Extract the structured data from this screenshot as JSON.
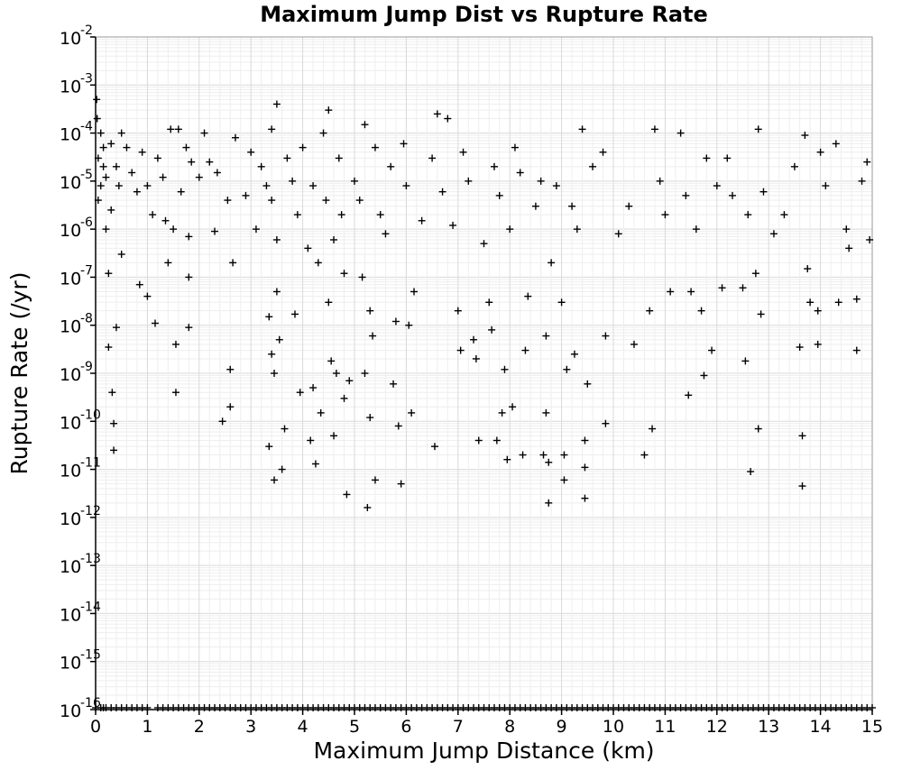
{
  "chart_data": {
    "type": "scatter",
    "title": "Maximum Jump Dist vs Rupture Rate",
    "xlabel": "Maximum Jump Distance (km)",
    "ylabel": "Rupture Rate (/yr)",
    "xlim": [
      0,
      15
    ],
    "ylim": [
      1e-16,
      0.01
    ],
    "y_scale": "log",
    "grid": true,
    "marker": "plus",
    "marker_color": "#000000",
    "x_ticks": [
      "0",
      "1",
      "2",
      "3",
      "4",
      "5",
      "6",
      "7",
      "8",
      "9",
      "10",
      "11",
      "12",
      "13",
      "14",
      "15"
    ],
    "y_ticks": [
      {
        "base": "10",
        "exp": "-2"
      },
      {
        "base": "10",
        "exp": "-3"
      },
      {
        "base": "10",
        "exp": "-4"
      },
      {
        "base": "10",
        "exp": "-5"
      },
      {
        "base": "10",
        "exp": "-6"
      },
      {
        "base": "10",
        "exp": "-7"
      },
      {
        "base": "10",
        "exp": "-8"
      },
      {
        "base": "10",
        "exp": "-9"
      },
      {
        "base": "10",
        "exp": "-10"
      },
      {
        "base": "10",
        "exp": "-11"
      },
      {
        "base": "10",
        "exp": "-12"
      },
      {
        "base": "10",
        "exp": "-13"
      },
      {
        "base": "10",
        "exp": "-14"
      },
      {
        "base": "10",
        "exp": "-15"
      },
      {
        "base": "10",
        "exp": "-16"
      }
    ],
    "points": [
      [
        0.02,
        0.0005
      ],
      [
        0.03,
        0.0002
      ],
      [
        0.05,
        3e-05
      ],
      [
        0.05,
        4e-06
      ],
      [
        0.1,
        0.0001
      ],
      [
        0.1,
        8e-06
      ],
      [
        0.15,
        5e-05
      ],
      [
        0.15,
        2e-05
      ],
      [
        0.2,
        1.2e-05
      ],
      [
        0.2,
        1e-06
      ],
      [
        0.25,
        1.2e-07
      ],
      [
        0.25,
        3.5e-09
      ],
      [
        0.3,
        6e-05
      ],
      [
        0.3,
        2.5e-06
      ],
      [
        0.32,
        4e-10
      ],
      [
        0.35,
        9e-11
      ],
      [
        0.35,
        2.5e-11
      ],
      [
        0.4,
        9e-09
      ],
      [
        0.4,
        2e-05
      ],
      [
        0.45,
        8e-06
      ],
      [
        0.5,
        0.0001
      ],
      [
        0.5,
        3e-07
      ],
      [
        0.6,
        5e-05
      ],
      [
        0.7,
        1.5e-05
      ],
      [
        0.8,
        6e-06
      ],
      [
        0.85,
        7e-08
      ],
      [
        0.9,
        4e-05
      ],
      [
        1.0,
        4e-08
      ],
      [
        1.0,
        8e-06
      ],
      [
        1.1,
        2e-06
      ],
      [
        1.15,
        1.1e-08
      ],
      [
        1.2,
        3e-05
      ],
      [
        1.3,
        1.2e-05
      ],
      [
        1.35,
        1.5e-06
      ],
      [
        1.4,
        2e-07
      ],
      [
        1.45,
        0.00012
      ],
      [
        1.5,
        1e-06
      ],
      [
        1.55,
        4e-09
      ],
      [
        1.55,
        4e-10
      ],
      [
        1.6,
        0.00012
      ],
      [
        1.65,
        6e-06
      ],
      [
        1.75,
        5e-05
      ],
      [
        1.8,
        7e-07
      ],
      [
        1.8,
        1e-07
      ],
      [
        1.8,
        9e-09
      ],
      [
        1.85,
        2.5e-05
      ],
      [
        2.0,
        1.2e-05
      ],
      [
        2.1,
        0.0001
      ],
      [
        2.2,
        2.5e-05
      ],
      [
        2.3,
        9e-07
      ],
      [
        2.35,
        1.5e-05
      ],
      [
        2.45,
        1e-10
      ],
      [
        2.55,
        4e-06
      ],
      [
        2.6,
        1.2e-09
      ],
      [
        2.6,
        2e-10
      ],
      [
        2.65,
        2e-07
      ],
      [
        2.7,
        8e-05
      ],
      [
        2.9,
        5e-06
      ],
      [
        3.0,
        4e-05
      ],
      [
        3.1,
        1e-06
      ],
      [
        3.2,
        2e-05
      ],
      [
        3.3,
        8e-06
      ],
      [
        3.35,
        1.5e-08
      ],
      [
        3.35,
        3e-11
      ],
      [
        3.4,
        0.00012
      ],
      [
        3.4,
        4e-06
      ],
      [
        3.4,
        2.5e-09
      ],
      [
        3.45,
        1e-09
      ],
      [
        3.45,
        6e-12
      ],
      [
        3.5,
        0.0004
      ],
      [
        3.5,
        6e-07
      ],
      [
        3.5,
        5e-08
      ],
      [
        3.55,
        5e-09
      ],
      [
        3.6,
        1e-11
      ],
      [
        3.65,
        7e-11
      ],
      [
        3.7,
        3e-05
      ],
      [
        3.8,
        1e-05
      ],
      [
        3.85,
        1.7e-08
      ],
      [
        3.9,
        2e-06
      ],
      [
        3.95,
        4e-10
      ],
      [
        4.0,
        5e-05
      ],
      [
        4.1,
        4e-07
      ],
      [
        4.15,
        4e-11
      ],
      [
        4.2,
        8e-06
      ],
      [
        4.2,
        5e-10
      ],
      [
        4.25,
        1.3e-11
      ],
      [
        4.3,
        2e-07
      ],
      [
        4.35,
        1.5e-10
      ],
      [
        4.4,
        0.0001
      ],
      [
        4.45,
        4e-06
      ],
      [
        4.5,
        0.0003
      ],
      [
        4.5,
        3e-08
      ],
      [
        4.55,
        1.8e-09
      ],
      [
        4.6,
        5e-11
      ],
      [
        4.6,
        6e-07
      ],
      [
        4.65,
        1e-09
      ],
      [
        4.7,
        3e-05
      ],
      [
        4.75,
        2e-06
      ],
      [
        4.8,
        1.2e-07
      ],
      [
        4.8,
        3e-10
      ],
      [
        4.85,
        3e-12
      ],
      [
        4.9,
        7e-10
      ],
      [
        5.0,
        1e-05
      ],
      [
        5.1,
        4e-06
      ],
      [
        5.15,
        1e-07
      ],
      [
        5.2,
        0.00015
      ],
      [
        5.2,
        1e-09
      ],
      [
        5.25,
        1.6e-12
      ],
      [
        5.3,
        2e-08
      ],
      [
        5.3,
        1.2e-10
      ],
      [
        5.35,
        6e-09
      ],
      [
        5.4,
        6e-12
      ],
      [
        5.4,
        5e-05
      ],
      [
        5.5,
        2e-06
      ],
      [
        5.6,
        8e-07
      ],
      [
        5.7,
        2e-05
      ],
      [
        5.75,
        6e-10
      ],
      [
        5.8,
        1.2e-08
      ],
      [
        5.85,
        8e-11
      ],
      [
        5.9,
        5e-12
      ],
      [
        5.95,
        6e-05
      ],
      [
        6.0,
        8e-06
      ],
      [
        6.05,
        1e-08
      ],
      [
        6.1,
        1.5e-10
      ],
      [
        6.15,
        5e-08
      ],
      [
        6.3,
        1.5e-06
      ],
      [
        6.5,
        3e-05
      ],
      [
        6.55,
        3e-11
      ],
      [
        6.6,
        0.00025
      ],
      [
        6.7,
        6e-06
      ],
      [
        6.8,
        0.0002
      ],
      [
        6.9,
        1.2e-06
      ],
      [
        7.0,
        2e-08
      ],
      [
        7.05,
        3e-09
      ],
      [
        7.1,
        4e-05
      ],
      [
        7.2,
        1e-05
      ],
      [
        7.3,
        5e-09
      ],
      [
        7.35,
        2e-09
      ],
      [
        7.4,
        4e-11
      ],
      [
        7.5,
        5e-07
      ],
      [
        7.6,
        3e-08
      ],
      [
        7.65,
        8e-09
      ],
      [
        7.7,
        2e-05
      ],
      [
        7.75,
        4e-11
      ],
      [
        7.8,
        5e-06
      ],
      [
        7.85,
        1.5e-10
      ],
      [
        7.9,
        1.2e-09
      ],
      [
        7.95,
        1.6e-11
      ],
      [
        8.0,
        1e-06
      ],
      [
        8.05,
        2e-10
      ],
      [
        8.1,
        5e-05
      ],
      [
        8.2,
        1.5e-05
      ],
      [
        8.25,
        2e-11
      ],
      [
        8.3,
        3e-09
      ],
      [
        8.35,
        4e-08
      ],
      [
        8.5,
        3e-06
      ],
      [
        8.6,
        1e-05
      ],
      [
        8.65,
        2e-11
      ],
      [
        8.7,
        6e-09
      ],
      [
        8.7,
        1.5e-10
      ],
      [
        8.75,
        2e-12
      ],
      [
        8.75,
        1.4e-11
      ],
      [
        8.8,
        2e-07
      ],
      [
        8.9,
        8e-06
      ],
      [
        9.0,
        3e-08
      ],
      [
        9.05,
        2e-11
      ],
      [
        9.05,
        6e-12
      ],
      [
        9.1,
        1.2e-09
      ],
      [
        9.2,
        3e-06
      ],
      [
        9.25,
        2.5e-09
      ],
      [
        9.3,
        1e-06
      ],
      [
        9.4,
        0.00012
      ],
      [
        9.45,
        4e-11
      ],
      [
        9.45,
        2.5e-12
      ],
      [
        9.45,
        1.1e-11
      ],
      [
        9.5,
        6e-10
      ],
      [
        9.6,
        2e-05
      ],
      [
        9.8,
        4e-05
      ],
      [
        9.85,
        6e-09
      ],
      [
        9.85,
        9e-11
      ],
      [
        10.1,
        8e-07
      ],
      [
        10.3,
        3e-06
      ],
      [
        10.4,
        4e-09
      ],
      [
        10.6,
        2e-11
      ],
      [
        10.7,
        2e-08
      ],
      [
        10.75,
        7e-11
      ],
      [
        10.8,
        0.00012
      ],
      [
        10.9,
        1e-05
      ],
      [
        11.0,
        2e-06
      ],
      [
        11.1,
        5e-08
      ],
      [
        11.3,
        0.0001
      ],
      [
        11.4,
        5e-06
      ],
      [
        11.45,
        3.5e-10
      ],
      [
        11.5,
        5e-08
      ],
      [
        11.6,
        1e-06
      ],
      [
        11.7,
        2e-08
      ],
      [
        11.75,
        9e-10
      ],
      [
        11.8,
        3e-05
      ],
      [
        11.9,
        3e-09
      ],
      [
        12.0,
        8e-06
      ],
      [
        12.1,
        6e-08
      ],
      [
        12.2,
        3e-05
      ],
      [
        12.3,
        5e-06
      ],
      [
        12.5,
        6e-08
      ],
      [
        12.55,
        1.8e-09
      ],
      [
        12.6,
        2e-06
      ],
      [
        12.65,
        9e-12
      ],
      [
        12.75,
        1.2e-07
      ],
      [
        12.8,
        0.00012
      ],
      [
        12.8,
        7e-11
      ],
      [
        12.85,
        1.7e-08
      ],
      [
        12.9,
        6e-06
      ],
      [
        13.1,
        8e-07
      ],
      [
        13.3,
        2e-06
      ],
      [
        13.5,
        2e-05
      ],
      [
        13.6,
        3.5e-09
      ],
      [
        13.65,
        5e-11
      ],
      [
        13.65,
        4.5e-12
      ],
      [
        13.7,
        9e-05
      ],
      [
        13.75,
        1.5e-07
      ],
      [
        13.8,
        3e-08
      ],
      [
        13.95,
        4e-09
      ],
      [
        13.95,
        2e-08
      ],
      [
        14.0,
        4e-05
      ],
      [
        14.1,
        8e-06
      ],
      [
        14.3,
        6e-05
      ],
      [
        14.35,
        3e-08
      ],
      [
        14.5,
        1e-06
      ],
      [
        14.55,
        4e-07
      ],
      [
        14.7,
        3.5e-08
      ],
      [
        14.7,
        3e-09
      ],
      [
        14.8,
        1e-05
      ],
      [
        14.9,
        2.5e-05
      ],
      [
        14.95,
        6e-07
      ]
    ],
    "floor_points_x": [
      0.0,
      0.1,
      0.15,
      0.2,
      0.3,
      0.4,
      0.5,
      0.6,
      0.7,
      0.8,
      0.9,
      1.0,
      1.2,
      1.3,
      1.4,
      1.5,
      1.6,
      1.7,
      1.8,
      1.9,
      2.0,
      2.1,
      2.2,
      2.3,
      2.4,
      2.5,
      2.6,
      2.7,
      2.8,
      2.9,
      3.0,
      3.1,
      3.2,
      3.3,
      3.4,
      3.5,
      3.6,
      3.7,
      3.8,
      3.9,
      4.0,
      4.1,
      4.2,
      4.3,
      4.4,
      4.5,
      4.6,
      4.7,
      4.8,
      4.9,
      5.0,
      5.1,
      5.2,
      5.3,
      5.4,
      5.5,
      5.6,
      5.7,
      5.8,
      5.9,
      6.0,
      6.1,
      6.2,
      6.3,
      6.4,
      6.5,
      6.6,
      6.7,
      6.8,
      6.9,
      7.0,
      7.1,
      7.2,
      7.3,
      7.4,
      7.5,
      7.6,
      7.7,
      7.8,
      7.9,
      8.0,
      8.1,
      8.2,
      8.3,
      8.4,
      8.5,
      8.6,
      8.7,
      8.8,
      8.9,
      9.0,
      9.1,
      9.2,
      9.3,
      9.4,
      9.5,
      9.6,
      9.7,
      9.8,
      9.9,
      10.0,
      10.1,
      10.2,
      10.3,
      10.4,
      10.5,
      10.6,
      10.7,
      10.8,
      10.9,
      11.0,
      11.1,
      11.2,
      11.3,
      11.4,
      11.5,
      11.6,
      11.7,
      11.8,
      11.9,
      12.0,
      12.1,
      12.2,
      12.3,
      12.4,
      12.5,
      12.6,
      12.7,
      12.8,
      12.9,
      13.0,
      13.1,
      13.2,
      13.3,
      13.4,
      13.5,
      13.6,
      13.7,
      13.8,
      13.9,
      14.0,
      14.1,
      14.2,
      14.3,
      14.4,
      14.5,
      14.6,
      14.7,
      14.8,
      14.9,
      15.0
    ]
  }
}
